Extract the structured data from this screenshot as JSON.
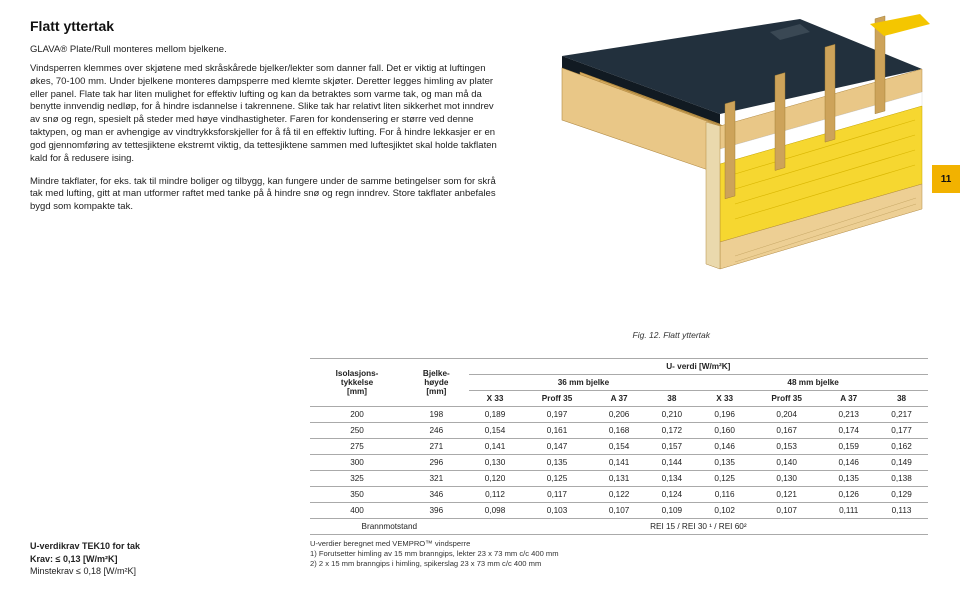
{
  "page": {
    "title": "Flatt yttertak",
    "subtitle": "GLAVA® Plate/Rull monteres mellom bjelkene.",
    "paragraph1": "Vindsperren klemmes over skjøtene med skråskårede bjelker/lekter som danner fall. Det er viktig at luftingen økes, 70-100 mm. Under bjelkene monteres dampsperre med klemte skjøter. Deretter legges himling av plater eller panel. Flate tak har liten mulighet for effektiv lufting og kan da betraktes som varme tak, og man må da benytte innvendig nedløp, for å hindre isdannelse i takrennene. Slike tak har relativt liten sikkerhet mot inndrev av snø og regn, spesielt på steder med høye vindhastigheter. Faren for kondensering er større ved denne taktypen, og man er avhengige av vindtrykksforskjeller for å få til en effektiv lufting. For å hindre lekkasjer er en god gjennomføring av tettesjiktene ekstremt viktig, da tettesjiktene sammen med luftesjiktet skal holde takflaten kald for å redusere ising.",
    "paragraph2": "Mindre takflater, for eks. tak til mindre boliger og tilbygg, kan fungere under de samme betingelser som for skrå tak med lufting, gitt at man utformer raftet med tanke på å hindre snø og regn inndrev. Store takflater anbefales bygd som kompakte tak.",
    "page_number": "11",
    "fig_caption": "Fig. 12. Flatt yttertak"
  },
  "illustration": {
    "roof_top_color": "#1f2a36",
    "wood_light": "#f0cf8c",
    "wood_dark": "#caa35a",
    "insulation_color": "#f6d730",
    "sky": "#ffffff",
    "panel_line": "#a7813a"
  },
  "table": {
    "header": {
      "iso_label_1": "Isolasjons-",
      "iso_label_2": "tykkelse",
      "iso_label_3": "[mm]",
      "bjelke_1": "Bjelke-",
      "bjelke_2": "høyde",
      "bjelke_3": "[mm]",
      "u_header": "U- verdi [W/m²K]",
      "b36": "36 mm bjelke",
      "b48": "48 mm bjelke",
      "sub_cols": [
        "X 33",
        "Proff 35",
        "A 37",
        "38",
        "X 33",
        "Proff 35",
        "A 37",
        "38"
      ]
    },
    "rows": [
      {
        "iso": "200",
        "h": "198",
        "v": [
          "0,189",
          "0,197",
          "0,206",
          "0,210",
          "0,196",
          "0,204",
          "0,213",
          "0,217"
        ]
      },
      {
        "iso": "250",
        "h": "246",
        "v": [
          "0,154",
          "0,161",
          "0,168",
          "0,172",
          "0,160",
          "0,167",
          "0,174",
          "0,177"
        ]
      },
      {
        "iso": "275",
        "h": "271",
        "v": [
          "0,141",
          "0,147",
          "0,154",
          "0,157",
          "0,146",
          "0,153",
          "0,159",
          "0,162"
        ]
      },
      {
        "iso": "300",
        "h": "296",
        "v": [
          "0,130",
          "0,135",
          "0,141",
          "0,144",
          "0,135",
          "0,140",
          "0,146",
          "0,149"
        ]
      },
      {
        "iso": "325",
        "h": "321",
        "v": [
          "0,120",
          "0,125",
          "0,131",
          "0,134",
          "0,125",
          "0,130",
          "0,135",
          "0,138"
        ]
      },
      {
        "iso": "350",
        "h": "346",
        "v": [
          "0,112",
          "0,117",
          "0,122",
          "0,124",
          "0,116",
          "0,121",
          "0,126",
          "0,129"
        ]
      },
      {
        "iso": "400",
        "h": "396",
        "v": [
          "0,098",
          "0,103",
          "0,107",
          "0,109",
          "0,102",
          "0,107",
          "0,111",
          "0,113"
        ]
      }
    ],
    "brann_label": "Brannmotstand",
    "brann_value": "REI 15 / REI 30 ¹ / REI 60²",
    "footnote1": "U-verdier beregnet med VEMPRO™ vindsperre",
    "footnote2": "1) Forutsetter himling av 15 mm branngips, lekter 23 x 73 mm c/c 400 mm",
    "footnote3": "2) 2 x 15 mm branngips i himling, spikerslag 23 x 73 mm c/c 400 mm"
  },
  "requirements": {
    "title": "U-verdikrav TEK10 for tak",
    "line1": "Krav: ≤ 0,13 [W/m²K]",
    "line2": "Minstekrav ≤ 0,18 [W/m²K]"
  }
}
